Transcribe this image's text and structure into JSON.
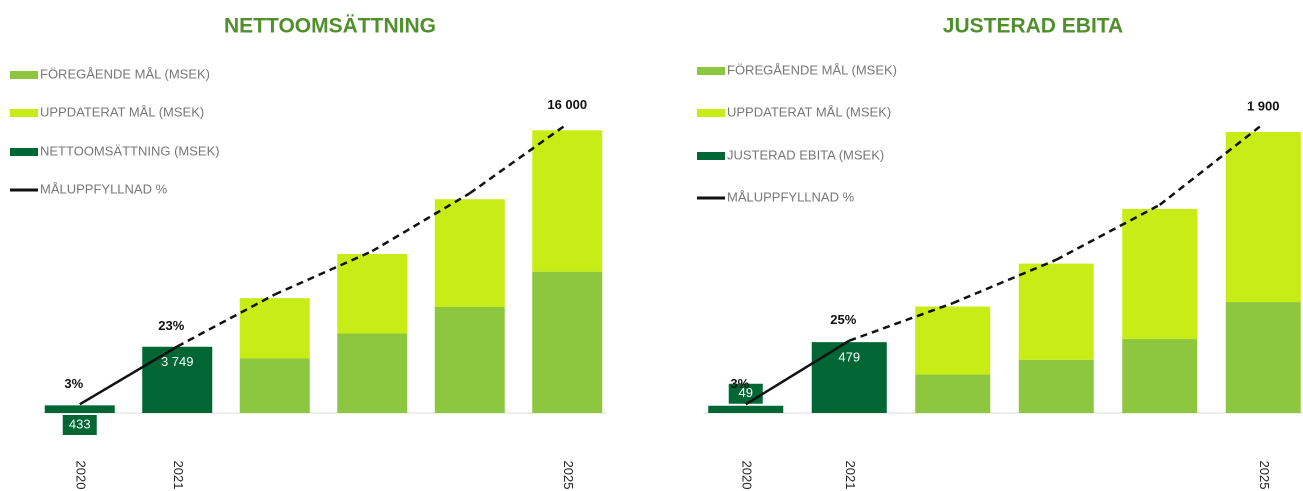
{
  "chart_data": [
    {
      "type": "bar",
      "title": "NETTOOMSÄTTNING",
      "categories": [
        "2020",
        "2021",
        null,
        null,
        null,
        "2025"
      ],
      "ylim": [
        0,
        18000
      ],
      "y2lim": [
        0,
        110
      ],
      "series": [
        {
          "name": "FÖREGÅENDE MÅL (MSEK)",
          "color": "#8dc63f",
          "stack": "goal",
          "values": [
            null,
            null,
            3100,
            4500,
            6000,
            8000
          ]
        },
        {
          "name": "UPPDATERAT MÅL (MSEK)",
          "color": "#c8ec16",
          "stack": "goal",
          "values": [
            null,
            null,
            3400,
            4500,
            6100,
            8000
          ]
        },
        {
          "name": "NETTOOMSÄTTNING (MSEK)",
          "color": "#006633",
          "values": [
            433,
            3749,
            null,
            null,
            null,
            null
          ],
          "value_labels": [
            "433",
            "3 749",
            null,
            null,
            null,
            null
          ]
        },
        {
          "name": "MÅLUPPFYLLNAD %",
          "type": "line",
          "axis": "y2",
          "color": "#111111",
          "values": [
            3,
            23,
            41,
            56,
            76,
            100
          ],
          "value_labels": [
            "3%",
            "23%",
            null,
            null,
            null,
            null
          ],
          "styles": [
            "solid",
            "solid",
            "dashed",
            "dashed",
            "dashed",
            "dashed"
          ]
        }
      ],
      "annotations": [
        {
          "text": "16 000",
          "x": "2025"
        }
      ]
    },
    {
      "type": "bar",
      "title": "JUSTERAD EBITA",
      "categories": [
        "2020",
        "2021",
        null,
        null,
        null,
        "2025"
      ],
      "ylim": [
        0,
        2150
      ],
      "y2lim": [
        0,
        110
      ],
      "series": [
        {
          "name": "FÖREGÅENDE MÅL (MSEK)",
          "color": "#8dc63f",
          "stack": "goal",
          "values": [
            null,
            null,
            260,
            360,
            500,
            750
          ]
        },
        {
          "name": "UPPDATERAT MÅL (MSEK)",
          "color": "#c8ec16",
          "stack": "goal",
          "values": [
            null,
            null,
            460,
            650,
            880,
            1150
          ]
        },
        {
          "name": "JUSTERAD EBITA (MSEK)",
          "color": "#006633",
          "values": [
            49,
            479,
            null,
            null,
            null,
            null
          ],
          "value_labels": [
            "49",
            "479",
            null,
            null,
            null,
            null
          ]
        },
        {
          "name": "MÅLUPPFYLLNAD %",
          "type": "line",
          "axis": "y2",
          "color": "#111111",
          "values": [
            3,
            25,
            38,
            53,
            72,
            100
          ],
          "value_labels": [
            "3%",
            "25%",
            null,
            null,
            null,
            null
          ],
          "styles": [
            "solid",
            "solid",
            "dashed",
            "dashed",
            "dashed",
            "dashed"
          ]
        }
      ],
      "annotations": [
        {
          "text": "1 900",
          "x": "2025"
        }
      ]
    }
  ]
}
